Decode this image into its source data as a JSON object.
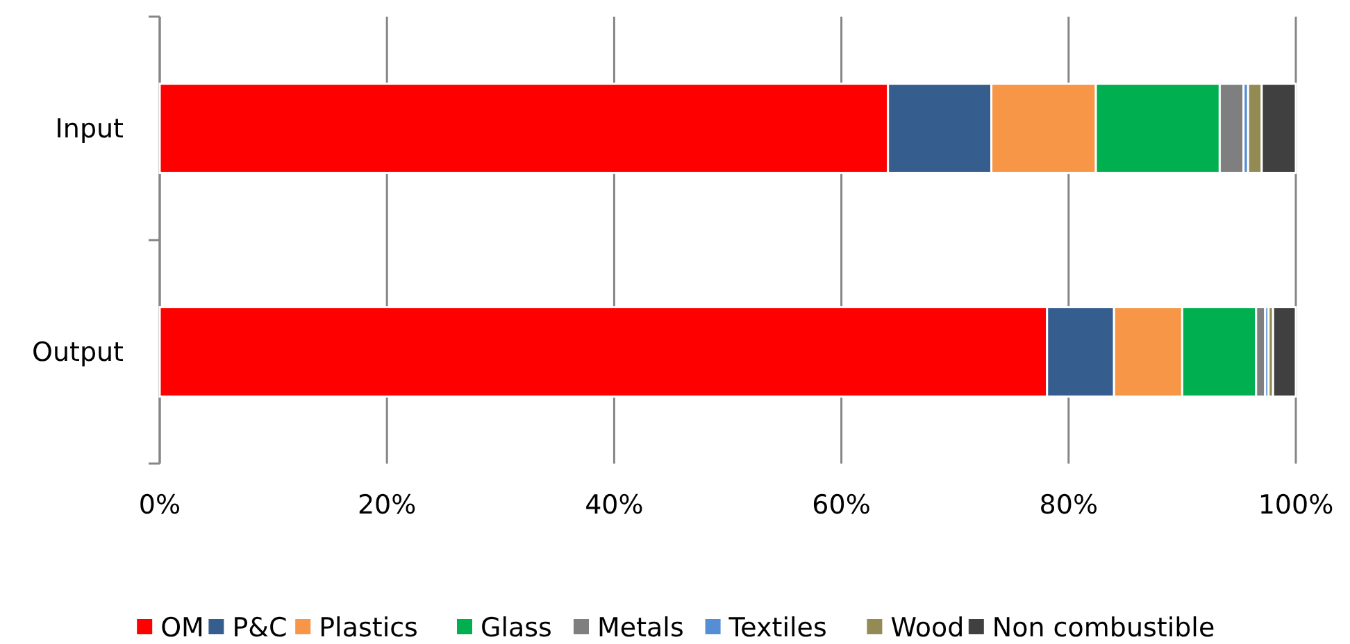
{
  "chart_data": {
    "type": "bar",
    "orientation": "horizontal",
    "stacked": true,
    "categories": [
      "Input",
      "Output"
    ],
    "series": [
      {
        "name": "OM",
        "color": "#ff0000",
        "values": [
          64.1,
          78.1
        ]
      },
      {
        "name": "P&C",
        "color": "#355e8f",
        "values": [
          9.1,
          5.9
        ]
      },
      {
        "name": "Plastics",
        "color": "#f79646",
        "values": [
          9.2,
          6.0
        ]
      },
      {
        "name": "Glass",
        "color": "#00b050",
        "values": [
          10.9,
          6.5
        ]
      },
      {
        "name": "Metals",
        "color": "#7f7f7f",
        "values": [
          2.1,
          0.8
        ]
      },
      {
        "name": "Textiles",
        "color": "#558ed5",
        "values": [
          0.4,
          0.3
        ]
      },
      {
        "name": "Wood",
        "color": "#948a54",
        "values": [
          1.2,
          0.4
        ]
      },
      {
        "name": "Non combustible",
        "color": "#404040",
        "values": [
          3.0,
          2.0
        ]
      }
    ],
    "xlim": [
      0,
      100
    ],
    "xticks": [
      {
        "value": 0,
        "label": "0%"
      },
      {
        "value": 20,
        "label": "20%"
      },
      {
        "value": 40,
        "label": "40%"
      },
      {
        "value": 60,
        "label": "60%"
      },
      {
        "value": 80,
        "label": "80%"
      },
      {
        "value": 100,
        "label": "100%"
      }
    ],
    "grid": "x",
    "legend": "bottom"
  }
}
